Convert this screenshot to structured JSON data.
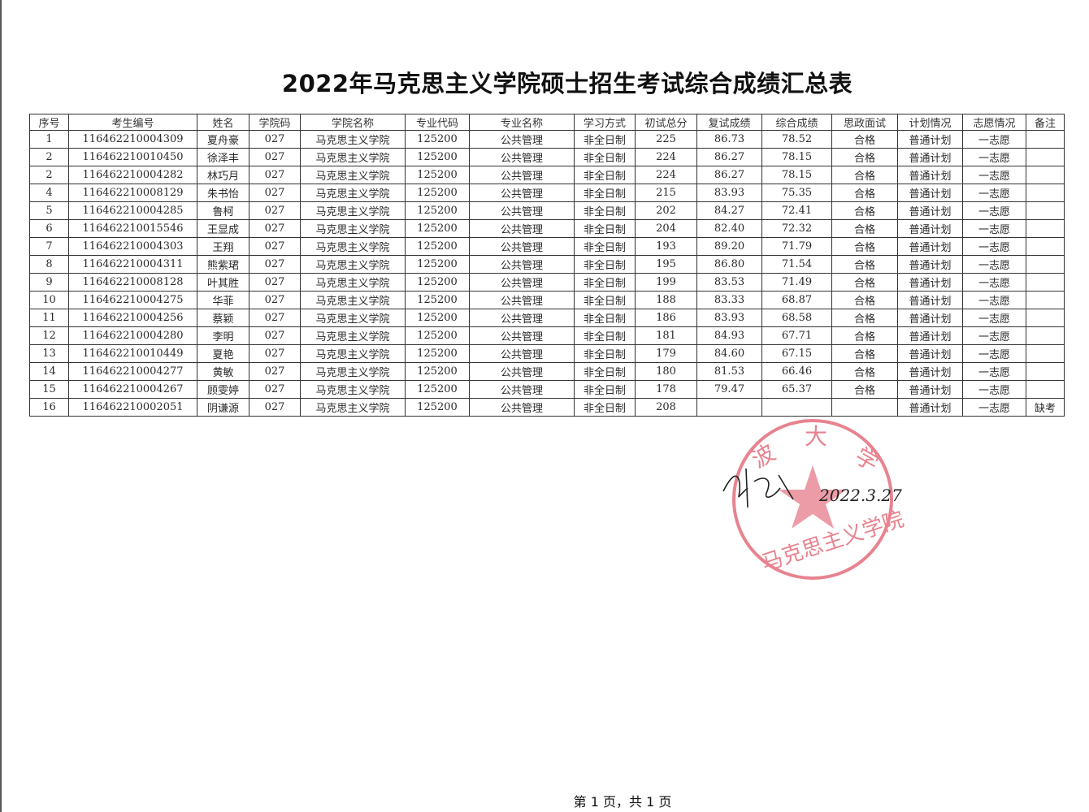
{
  "title": "2022年马克思主义学院硕士招生考试综合成绩汇总表",
  "columns": [
    "序号",
    "考生编号",
    "姓名",
    "学院码",
    "学院名称",
    "专业代码",
    "专业名称",
    "学习方式",
    "初试总分",
    "复试成绩",
    "综合成绩",
    "思政面试",
    "计划情况",
    "志愿情况",
    "备注"
  ],
  "rows": [
    [
      "1",
      "116462210004309",
      "夏舟豪",
      "027",
      "马克思主义学院",
      "125200",
      "公共管理",
      "非全日制",
      "225",
      "86.73",
      "78.52",
      "合格",
      "普通计划",
      "一志愿",
      ""
    ],
    [
      "2",
      "116462210010450",
      "徐泽丰",
      "027",
      "马克思主义学院",
      "125200",
      "公共管理",
      "非全日制",
      "224",
      "86.27",
      "78.15",
      "合格",
      "普通计划",
      "一志愿",
      ""
    ],
    [
      "2",
      "116462210004282",
      "林巧月",
      "027",
      "马克思主义学院",
      "125200",
      "公共管理",
      "非全日制",
      "224",
      "86.27",
      "78.15",
      "合格",
      "普通计划",
      "一志愿",
      ""
    ],
    [
      "4",
      "116462210008129",
      "朱书怡",
      "027",
      "马克思主义学院",
      "125200",
      "公共管理",
      "非全日制",
      "215",
      "83.93",
      "75.35",
      "合格",
      "普通计划",
      "一志愿",
      ""
    ],
    [
      "5",
      "116462210004285",
      "鲁柯",
      "027",
      "马克思主义学院",
      "125200",
      "公共管理",
      "非全日制",
      "202",
      "84.27",
      "72.41",
      "合格",
      "普通计划",
      "一志愿",
      ""
    ],
    [
      "6",
      "116462210015546",
      "王显成",
      "027",
      "马克思主义学院",
      "125200",
      "公共管理",
      "非全日制",
      "204",
      "82.40",
      "72.32",
      "合格",
      "普通计划",
      "一志愿",
      ""
    ],
    [
      "7",
      "116462210004303",
      "王翔",
      "027",
      "马克思主义学院",
      "125200",
      "公共管理",
      "非全日制",
      "193",
      "89.20",
      "71.79",
      "合格",
      "普通计划",
      "一志愿",
      ""
    ],
    [
      "8",
      "116462210004311",
      "熊紫珺",
      "027",
      "马克思主义学院",
      "125200",
      "公共管理",
      "非全日制",
      "195",
      "86.80",
      "71.54",
      "合格",
      "普通计划",
      "一志愿",
      ""
    ],
    [
      "9",
      "116462210008128",
      "叶其胜",
      "027",
      "马克思主义学院",
      "125200",
      "公共管理",
      "非全日制",
      "199",
      "83.53",
      "71.49",
      "合格",
      "普通计划",
      "一志愿",
      ""
    ],
    [
      "10",
      "116462210004275",
      "华菲",
      "027",
      "马克思主义学院",
      "125200",
      "公共管理",
      "非全日制",
      "188",
      "83.33",
      "68.87",
      "合格",
      "普通计划",
      "一志愿",
      ""
    ],
    [
      "11",
      "116462210004256",
      "蔡颖",
      "027",
      "马克思主义学院",
      "125200",
      "公共管理",
      "非全日制",
      "186",
      "83.93",
      "68.58",
      "合格",
      "普通计划",
      "一志愿",
      ""
    ],
    [
      "12",
      "116462210004280",
      "李明",
      "027",
      "马克思主义学院",
      "125200",
      "公共管理",
      "非全日制",
      "181",
      "84.93",
      "67.71",
      "合格",
      "普通计划",
      "一志愿",
      ""
    ],
    [
      "13",
      "116462210010449",
      "夏艳",
      "027",
      "马克思主义学院",
      "125200",
      "公共管理",
      "非全日制",
      "179",
      "84.60",
      "67.15",
      "合格",
      "普通计划",
      "一志愿",
      ""
    ],
    [
      "14",
      "116462210004277",
      "黄敏",
      "027",
      "马克思主义学院",
      "125200",
      "公共管理",
      "非全日制",
      "180",
      "81.53",
      "66.46",
      "合格",
      "普通计划",
      "一志愿",
      ""
    ],
    [
      "15",
      "116462210004267",
      "顾雯婷",
      "027",
      "马克思主义学院",
      "125200",
      "公共管理",
      "非全日制",
      "178",
      "79.47",
      "65.37",
      "合格",
      "普通计划",
      "一志愿",
      ""
    ],
    [
      "16",
      "116462210002051",
      "阴谦源",
      "027",
      "马克思主义学院",
      "125200",
      "公共管理",
      "非全日制",
      "208",
      "",
      "",
      "",
      "普通计划",
      "一志愿",
      "缺考"
    ]
  ],
  "stamp": {
    "top_text": "宁波大学",
    "bottom_text": "马克思主义学院",
    "color": "#e05a6a"
  },
  "signature": {
    "name": "刘俊",
    "date": "2022.3.27"
  },
  "footer": "第 1 页，共 1 页"
}
